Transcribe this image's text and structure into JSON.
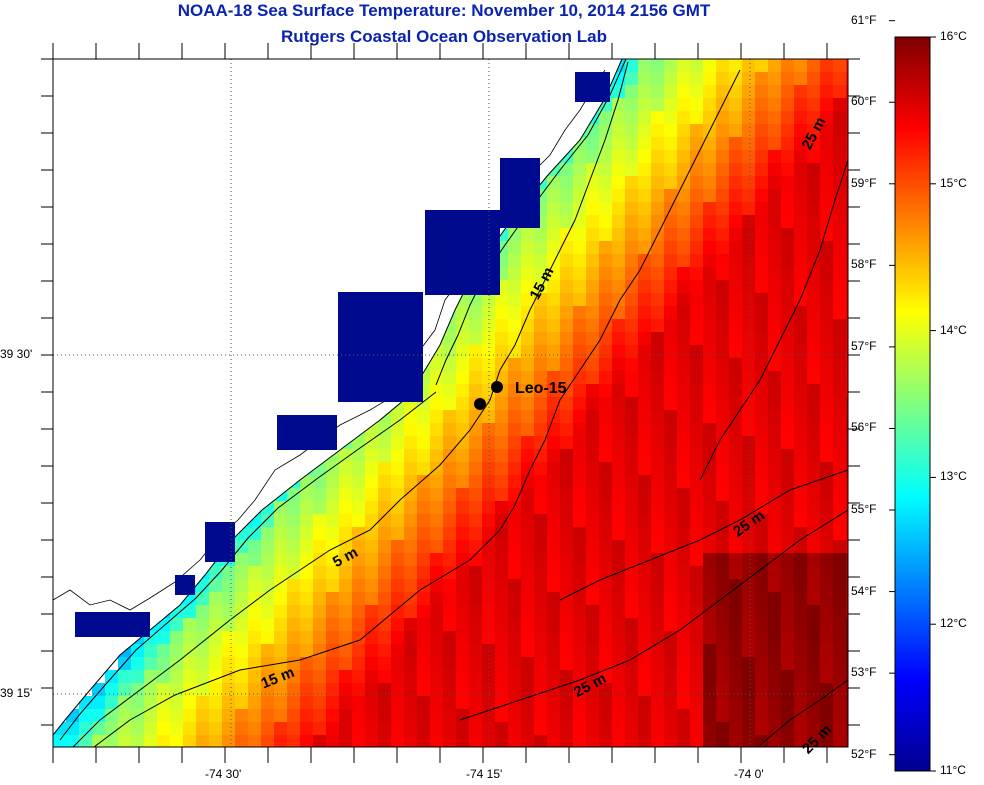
{
  "title": "NOAA-18 Sea Surface Temperature:  November 10, 2014 2156 GMT",
  "subtitle": "Rutgers Coastal Ocean Observation Lab",
  "lon_ticks": [
    "-74 30'",
    "-74 15'",
    "-74 0'"
  ],
  "lat_ticks": [
    "39 30'",
    "39 15'"
  ],
  "colorbar": {
    "fahrenheit": [
      "61°F",
      "60°F",
      "59°F",
      "58°F",
      "57°F",
      "56°F",
      "55°F",
      "54°F",
      "53°F",
      "52°F"
    ],
    "celsius": [
      "16°C",
      "15°C",
      "14°C",
      "13°C",
      "12°C",
      "11°C"
    ]
  },
  "station": {
    "name": "Leo-15"
  },
  "contours": [
    "25 m",
    "15 m",
    "25 m",
    "5 m",
    "15 m",
    "25 m",
    "25 m"
  ],
  "colors": {
    "land": "#ffffff",
    "title": "#0a24b0",
    "coast_line": "#000000"
  }
}
